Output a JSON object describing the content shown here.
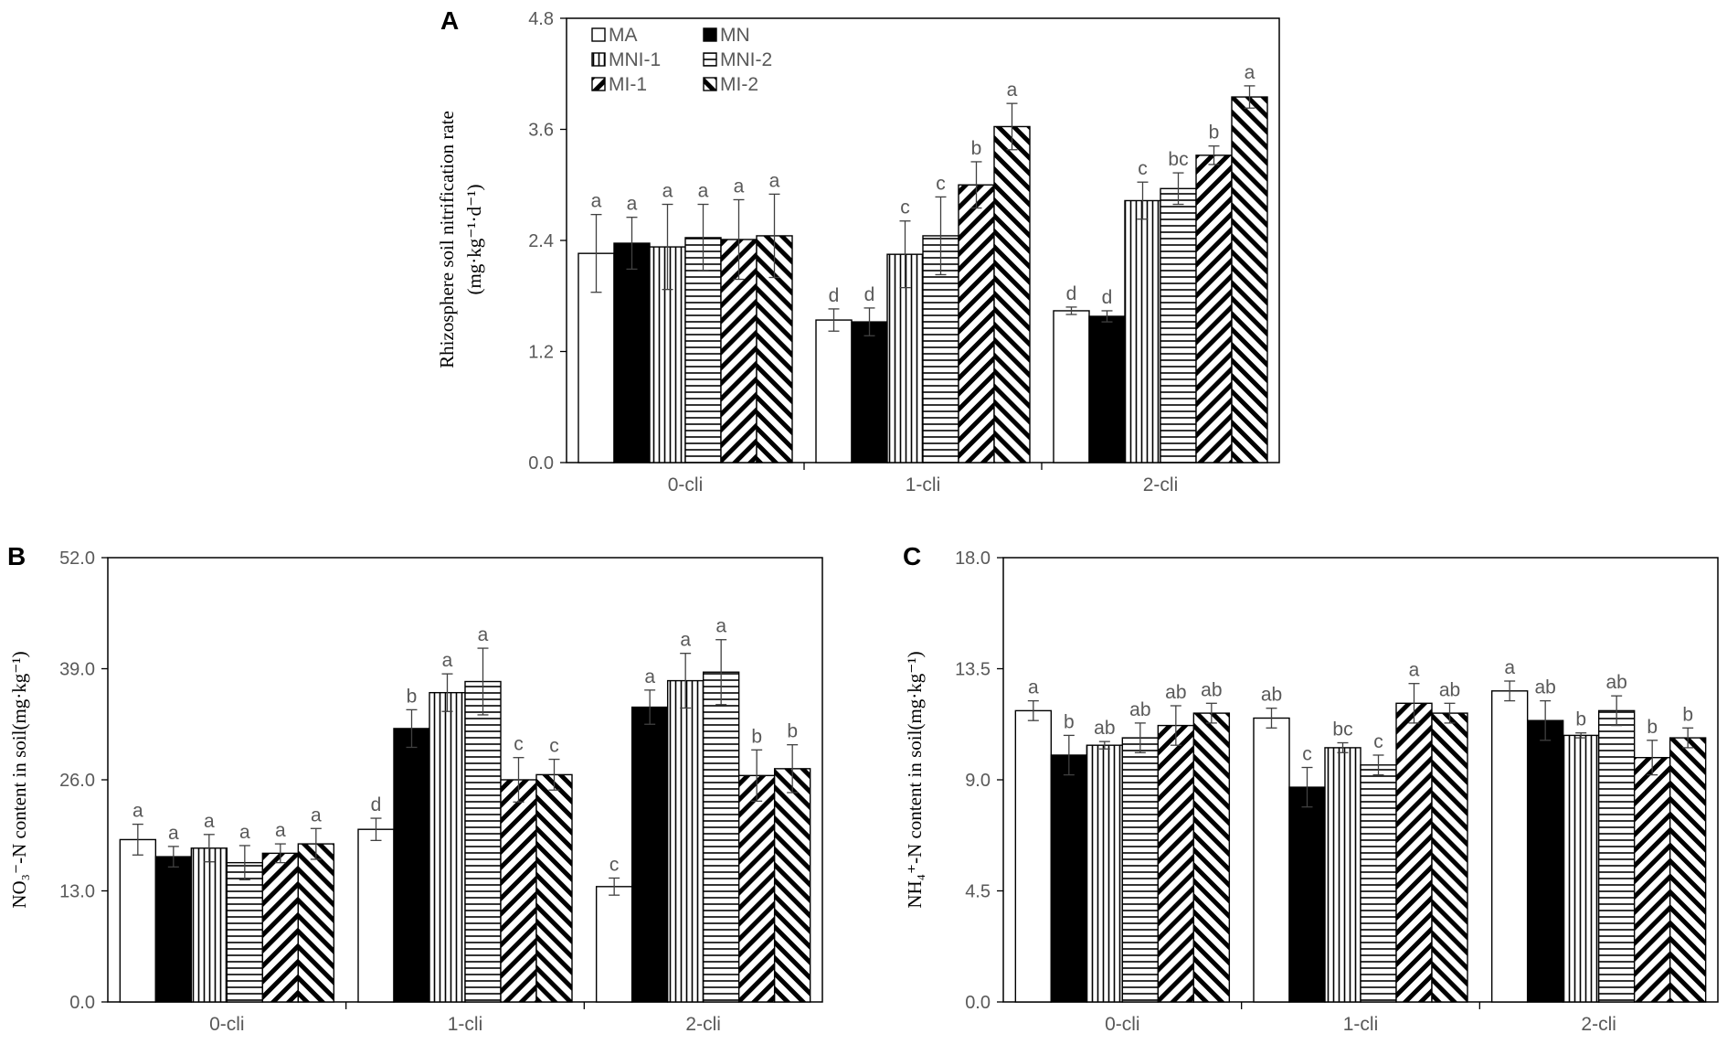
{
  "legend": {
    "items": [
      {
        "key": "MA",
        "label": "MA",
        "pattern": "white"
      },
      {
        "key": "MN",
        "label": "MN",
        "pattern": "black"
      },
      {
        "key": "MNI1",
        "label": "MNI-1",
        "pattern": "vert"
      },
      {
        "key": "MNI2",
        "label": "MNI-2",
        "pattern": "horiz"
      },
      {
        "key": "MI1",
        "label": "MI-1",
        "pattern": "diagback"
      },
      {
        "key": "MI2",
        "label": "MI-2",
        "pattern": "diagfwd"
      }
    ]
  },
  "chart_data": [
    {
      "panel": "A",
      "type": "bar",
      "ylabel_line1": "Rhizosphere soil nitrification rate",
      "ylabel_line2": "(mg·kg⁻¹·d⁻¹)",
      "ylim": [
        0,
        4.8
      ],
      "ticks": [
        "0.0",
        "1.2",
        "2.4",
        "3.6",
        "4.8"
      ],
      "categories": [
        "0-cli",
        "1-cli",
        "2-cli"
      ],
      "series": [
        {
          "name": "MA",
          "values": [
            2.26,
            1.54,
            1.64
          ],
          "errors": [
            0.42,
            0.12,
            0.04
          ],
          "letters": [
            "a",
            "d",
            "d"
          ]
        },
        {
          "name": "MN",
          "values": [
            2.37,
            1.52,
            1.58
          ],
          "errors": [
            0.28,
            0.15,
            0.06
          ],
          "letters": [
            "a",
            "d",
            "d"
          ]
        },
        {
          "name": "MNI-1",
          "values": [
            2.33,
            2.25,
            2.83
          ],
          "errors": [
            0.46,
            0.36,
            0.2
          ],
          "letters": [
            "a",
            "c",
            "c"
          ]
        },
        {
          "name": "MNI-2",
          "values": [
            2.43,
            2.45,
            2.96
          ],
          "errors": [
            0.36,
            0.42,
            0.17
          ],
          "letters": [
            "a",
            "c",
            "bc"
          ]
        },
        {
          "name": "MI-1",
          "values": [
            2.41,
            3.0,
            3.32
          ],
          "errors": [
            0.43,
            0.25,
            0.1
          ],
          "letters": [
            "a",
            "b",
            "b"
          ]
        },
        {
          "name": "MI-2",
          "values": [
            2.45,
            3.63,
            3.95
          ],
          "errors": [
            0.45,
            0.25,
            0.12
          ],
          "letters": [
            "a",
            "a",
            "a"
          ]
        }
      ]
    },
    {
      "panel": "B",
      "type": "bar",
      "ylabel_line1": "NO₃⁻-N content in soil(mg·kg⁻¹)",
      "ylabel_line2": "",
      "ylim": [
        0,
        52
      ],
      "ticks": [
        "0.0",
        "13.0",
        "26.0",
        "39.0",
        "52.0"
      ],
      "categories": [
        "0-cli",
        "1-cli",
        "2-cli"
      ],
      "series": [
        {
          "name": "MA",
          "values": [
            19.0,
            20.2,
            13.5
          ],
          "errors": [
            1.8,
            1.3,
            1.0
          ],
          "letters": [
            "a",
            "d",
            "c"
          ]
        },
        {
          "name": "MN",
          "values": [
            17.0,
            32.0,
            34.5
          ],
          "errors": [
            1.2,
            2.2,
            2.0
          ],
          "letters": [
            "a",
            "b",
            "a"
          ]
        },
        {
          "name": "MNI-1",
          "values": [
            18.0,
            36.2,
            37.6
          ],
          "errors": [
            1.6,
            2.2,
            3.2
          ],
          "letters": [
            "a",
            "a",
            "a"
          ]
        },
        {
          "name": "MNI-2",
          "values": [
            16.3,
            37.5,
            38.6
          ],
          "errors": [
            2.0,
            3.9,
            3.8
          ],
          "letters": [
            "a",
            "a",
            "a"
          ]
        },
        {
          "name": "MI-1",
          "values": [
            17.4,
            26.0,
            26.5
          ],
          "errors": [
            1.1,
            2.6,
            3.0
          ],
          "letters": [
            "a",
            "c",
            "b"
          ]
        },
        {
          "name": "MI-2",
          "values": [
            18.5,
            26.6,
            27.3
          ],
          "errors": [
            1.8,
            1.8,
            2.8
          ],
          "letters": [
            "a",
            "c",
            "b"
          ]
        }
      ]
    },
    {
      "panel": "C",
      "type": "bar",
      "ylabel_line1": "NH₄⁺-N content in soil(mg·kg⁻¹)",
      "ylabel_line2": "",
      "ylim": [
        0,
        18
      ],
      "ticks": [
        "0.0",
        "4.5",
        "9.0",
        "13.5",
        "18.0"
      ],
      "categories": [
        "0-cli",
        "1-cli",
        "2-cli"
      ],
      "series": [
        {
          "name": "MA",
          "values": [
            11.8,
            11.5,
            12.6
          ],
          "errors": [
            0.4,
            0.4,
            0.4
          ],
          "letters": [
            "a",
            "ab",
            "a"
          ]
        },
        {
          "name": "MN",
          "values": [
            10.0,
            8.7,
            11.4
          ],
          "errors": [
            0.8,
            0.8,
            0.8
          ],
          "letters": [
            "b",
            "c",
            "ab"
          ]
        },
        {
          "name": "MNI-1",
          "values": [
            10.4,
            10.3,
            10.8
          ],
          "errors": [
            0.15,
            0.2,
            0.1
          ],
          "letters": [
            "ab",
            "bc",
            "b"
          ]
        },
        {
          "name": "MNI-2",
          "values": [
            10.7,
            9.6,
            11.8
          ],
          "errors": [
            0.6,
            0.4,
            0.6
          ],
          "letters": [
            "ab",
            "c",
            "ab"
          ]
        },
        {
          "name": "MI-1",
          "values": [
            11.2,
            12.1,
            9.9
          ],
          "errors": [
            0.8,
            0.8,
            0.7
          ],
          "letters": [
            "ab",
            "a",
            "b"
          ]
        },
        {
          "name": "MI-2",
          "values": [
            11.7,
            11.7,
            10.7
          ],
          "errors": [
            0.4,
            0.4,
            0.4
          ],
          "letters": [
            "ab",
            "ab",
            "b"
          ]
        }
      ]
    }
  ]
}
